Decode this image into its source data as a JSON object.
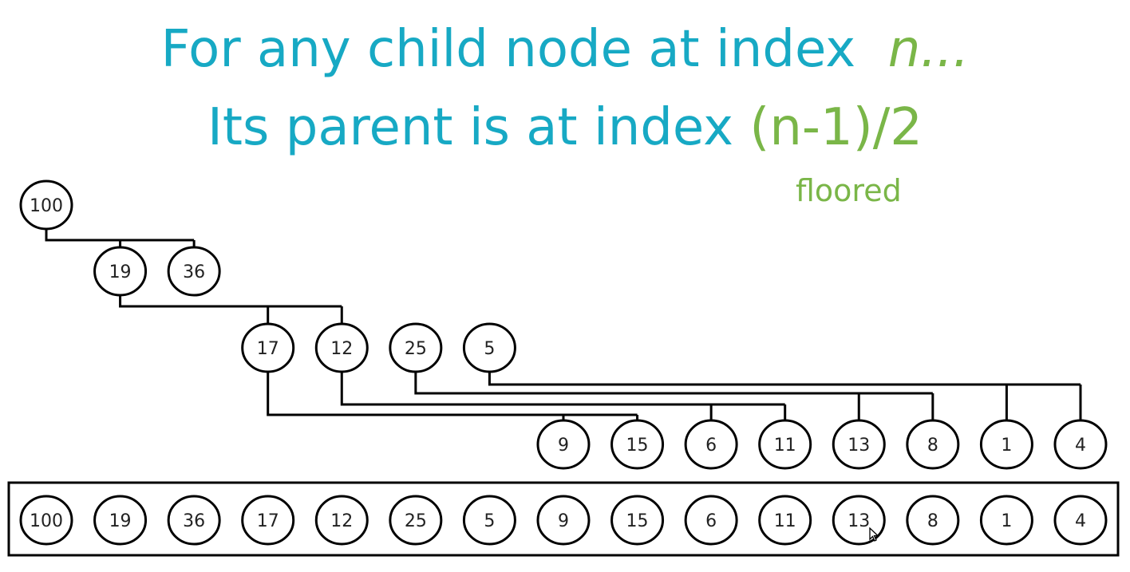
{
  "heading": {
    "line1_text": "For any child node at index",
    "line1_var": "n...",
    "line2_text": "Its parent is at index",
    "line2_formula": "(n-1)/2",
    "note": "floored"
  },
  "heap": {
    "values": [
      "100",
      "19",
      "36",
      "17",
      "12",
      "25",
      "5",
      "9",
      "15",
      "6",
      "11",
      "13",
      "8",
      "1",
      "4"
    ]
  },
  "colors": {
    "heading": "#17a9c4",
    "accent": "#7ab648",
    "stroke": "#000000"
  }
}
